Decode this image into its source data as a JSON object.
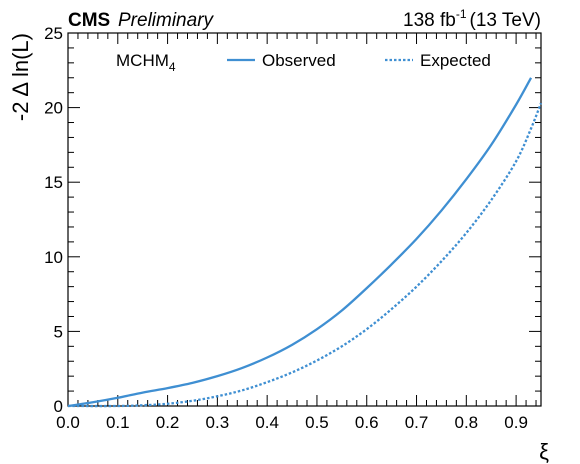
{
  "header": {
    "experiment": "CMS",
    "status": "Preliminary",
    "lumi_value": "138 fb",
    "lumi_exp": "-1",
    "lumi_energy": "(13 TeV)"
  },
  "legend": {
    "model_main": "MCHM",
    "model_sub": "4"
  },
  "chart_data": {
    "type": "line",
    "xlabel": "ξ",
    "ylabel": "-2 Δ ln(L)",
    "xlim": [
      0.0,
      0.95
    ],
    "ylim": [
      0,
      25
    ],
    "x_ticks": [
      0.0,
      0.1,
      0.2,
      0.3,
      0.4,
      0.5,
      0.6,
      0.7,
      0.8,
      0.9
    ],
    "x_tick_labels": [
      "0.0",
      "0.1",
      "0.2",
      "0.3",
      "0.4",
      "0.5",
      "0.6",
      "0.7",
      "0.8",
      "0.9"
    ],
    "y_ticks": [
      0,
      5,
      10,
      15,
      20,
      25
    ],
    "y_tick_labels": [
      "0",
      "5",
      "10",
      "15",
      "20",
      "25"
    ],
    "grid": false,
    "legend_position": "top",
    "series": [
      {
        "name": "Observed",
        "style": "solid",
        "color": "#3f8fd2",
        "x": [
          0.0,
          0.05,
          0.1,
          0.15,
          0.2,
          0.25,
          0.3,
          0.35,
          0.4,
          0.45,
          0.5,
          0.55,
          0.6,
          0.65,
          0.7,
          0.75,
          0.8,
          0.85,
          0.9,
          0.93
        ],
        "y": [
          0.0,
          0.25,
          0.55,
          0.9,
          1.2,
          1.55,
          2.0,
          2.55,
          3.25,
          4.1,
          5.15,
          6.4,
          7.9,
          9.5,
          11.2,
          13.1,
          15.2,
          17.5,
          20.2,
          22.0
        ]
      },
      {
        "name": "Expected",
        "style": "dotted",
        "color": "#3f8fd2",
        "x": [
          0.0,
          0.1,
          0.15,
          0.2,
          0.25,
          0.3,
          0.35,
          0.4,
          0.45,
          0.5,
          0.55,
          0.6,
          0.65,
          0.7,
          0.75,
          0.8,
          0.85,
          0.9,
          0.93,
          0.95
        ],
        "y": [
          0.0,
          0.0,
          0.05,
          0.15,
          0.35,
          0.65,
          1.05,
          1.6,
          2.25,
          3.05,
          4.0,
          5.15,
          6.5,
          8.0,
          9.7,
          11.6,
          13.8,
          16.4,
          18.6,
          20.3
        ]
      }
    ]
  }
}
